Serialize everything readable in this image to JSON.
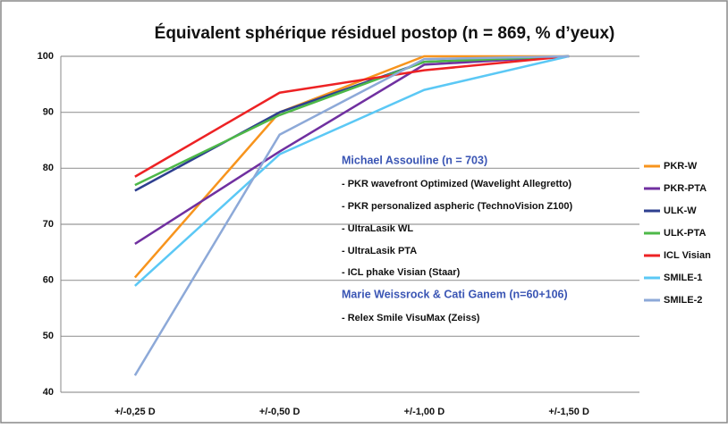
{
  "chart_data": {
    "type": "line",
    "title": "Équivalent sphérique résiduel postop (n = 869, % d’yeux)",
    "categories": [
      "+/-0,25 D",
      "+/-0,50 D",
      "+/-1,00 D",
      "+/-1,50 D"
    ],
    "series": [
      {
        "name": "PKR-W",
        "color": "#f7941d",
        "values": [
          60.5,
          90,
          100,
          100
        ]
      },
      {
        "name": "PKR-PTA",
        "color": "#7030a0",
        "values": [
          66.5,
          83,
          98.5,
          100
        ]
      },
      {
        "name": "ULK-W",
        "color": "#2e3f8f",
        "values": [
          76,
          90,
          99,
          100
        ]
      },
      {
        "name": "ULK-PTA",
        "color": "#4db848",
        "values": [
          77,
          89.5,
          99,
          100
        ]
      },
      {
        "name": "ICL Visian",
        "color": "#ed2224",
        "values": [
          78.5,
          93.5,
          97.5,
          100
        ]
      },
      {
        "name": "SMILE-1",
        "color": "#5bc8f5",
        "values": [
          59,
          82.5,
          94,
          100
        ]
      },
      {
        "name": "SMILE-2",
        "color": "#8da9d8",
        "values": [
          43,
          86,
          99.5,
          100
        ]
      }
    ],
    "ylim": [
      40,
      100
    ],
    "yticks": [
      40,
      50,
      60,
      70,
      80,
      90,
      100
    ],
    "grid": true,
    "legend": "right",
    "annotations": [
      "Michael Assouline  (n = 703)",
      "- PKR wavefront Optimized (Wavelight Allegretto)",
      "- PKR personalized aspheric (TechnoVision Z100)",
      "- UltraLasik WL",
      "- UltraLasik PTA",
      "- ICL phake Visian (Staar)",
      "Marie Weissrock & Cati Ganem (n=60+106)",
      "- Relex Smile VisuMax (Zeiss)"
    ]
  }
}
